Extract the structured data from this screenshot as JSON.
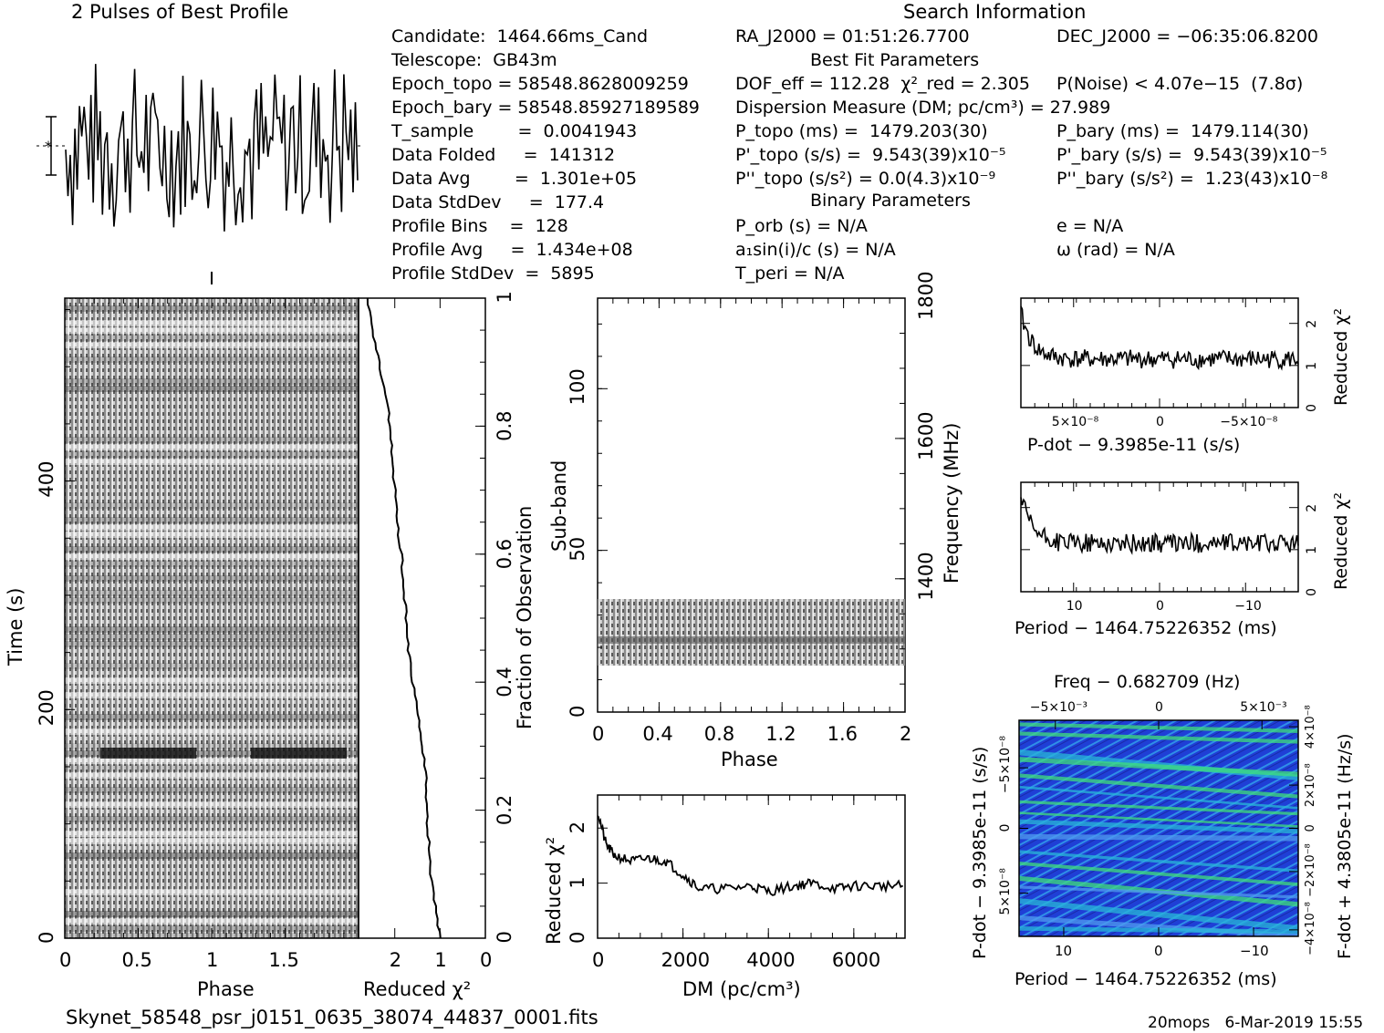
{
  "header": {
    "profile_title": "2 Pulses of Best Profile",
    "search_title": "Search Information",
    "best_fit_title": "Best Fit Parameters",
    "binary_title": "Binary Parameters"
  },
  "info_col1": [
    "Candidate:  1464.66ms_Cand",
    "Telescope:  GB43m",
    "Epoch_topo = 58548.8628009259",
    "Epoch_bary = 58548.85927189589",
    "T_sample        =  0.0041943",
    "Data Folded     =  141312",
    "Data Avg        =  1.301e+05",
    "Data StdDev     =  177.4",
    "Profile Bins    =  128",
    "Profile Avg     =  1.434e+08",
    "Profile StdDev  =  5895"
  ],
  "info_col2": [
    "RA_J2000 = 01:51:26.7700",
    "DOF_eff = 112.28  χ²_red = 2.305",
    "Dispersion Measure (DM; pc/cm³) = 27.989",
    "P_topo (ms) =  1479.203(30)",
    "P'_topo (s/s) =  9.543(39)x10⁻⁵",
    "P''_topo (s/s²) = 0.0(4.3)x10⁻⁹",
    "P_orb (s) = N/A",
    "a₁sin(i)/c (s) = N/A",
    "T_peri = N/A"
  ],
  "info_col3": [
    "DEC_J2000 = −06:35:06.8200",
    "P(Noise) < 4.07e−15  (7.8σ)",
    "P_bary (ms) =  1479.114(30)",
    "P'_bary (s/s) =  9.543(39)x10⁻⁵",
    "P''_bary (s/s²) =  1.23(43)x10⁻⁸",
    "e = N/A",
    "ω (rad) = N/A"
  ],
  "footer": {
    "filename": "Skynet_58548_psr_j0151_0635_38074_44837_0001.fits",
    "stamp": "20mops   6-Mar-2019 15:55"
  },
  "chart_data": [
    {
      "type": "line",
      "name": "pulse_profile",
      "title": "2 Pulses of Best Profile",
      "xlim": [
        0,
        2
      ],
      "note": "two identical pulses, noisy profile"
    },
    {
      "type": "heatmap",
      "name": "time_vs_phase",
      "xlabel": "Phase",
      "ylabel": "Time (s)",
      "xlim": [
        0,
        2
      ],
      "ylim": [
        0,
        560
      ],
      "x_ticks": [
        "0",
        "0.5",
        "1",
        "1.5"
      ],
      "y_ticks": [
        "0",
        "200",
        "400"
      ],
      "right_axis_label": "Fraction of Observation",
      "right_ticks": [
        "0",
        "0.2",
        "0.4",
        "0.6",
        "0.8",
        "1"
      ]
    },
    {
      "type": "line",
      "name": "reduced_chi2_vs_time",
      "xlabel": "Reduced χ²",
      "xlim": [
        2.8,
        0
      ],
      "x_ticks": [
        "2",
        "1",
        "0"
      ],
      "fraction": [
        0.0,
        0.05,
        0.1,
        0.15,
        0.2,
        0.25,
        0.3,
        0.35,
        0.4,
        0.45,
        0.5,
        0.55,
        0.6,
        0.65,
        0.7,
        0.75,
        0.8,
        0.85,
        0.9,
        0.95,
        1.0
      ],
      "chi2": [
        1.0,
        1.1,
        1.2,
        1.25,
        1.3,
        1.3,
        1.4,
        1.5,
        1.6,
        1.7,
        1.75,
        1.8,
        1.85,
        1.95,
        2.0,
        2.05,
        2.1,
        2.2,
        2.35,
        2.5,
        2.6
      ]
    },
    {
      "type": "heatmap",
      "name": "subband_vs_phase",
      "xlabel": "Phase",
      "ylabel": "Sub-band",
      "right_axis_label": "Frequency (MHz)",
      "xlim": [
        0,
        2
      ],
      "ylim": [
        0,
        128
      ],
      "x_ticks": [
        "0",
        "0.4",
        "0.8",
        "1.2",
        "1.6",
        "2"
      ],
      "y_ticks": [
        "0",
        "50",
        "100"
      ],
      "freq_ticks": [
        "1400",
        "1600",
        "1800"
      ],
      "filled_subbands": [
        14,
        35
      ]
    },
    {
      "type": "line",
      "name": "chi2_vs_dm",
      "xlabel": "DM (pc/cm³)",
      "ylabel": "Reduced χ²",
      "xlim": [
        0,
        7200
      ],
      "ylim": [
        0,
        2.6
      ],
      "x_ticks": [
        "0",
        "2000",
        "4000",
        "6000"
      ],
      "y_ticks": [
        "0",
        "1",
        "2"
      ],
      "x": [
        0,
        200,
        400,
        800,
        1200,
        1600,
        2000,
        2400,
        3000,
        3600,
        4000,
        4600,
        5000,
        5600,
        6000,
        6600,
        7200
      ],
      "y": [
        2.3,
        1.7,
        1.5,
        1.4,
        1.45,
        1.4,
        1.15,
        0.9,
        0.9,
        0.95,
        0.85,
        0.95,
        1.0,
        0.9,
        0.95,
        0.95,
        0.95
      ]
    },
    {
      "type": "line",
      "name": "chi2_vs_pdot",
      "xlabel": "P-dot − 9.3985e-11 (s/s)",
      "ylabel": "Reduced χ²",
      "x_ticks": [
        "5×10⁻⁸",
        "0",
        "−5×10⁻⁸"
      ],
      "y_ticks": [
        "0",
        "1",
        "2"
      ],
      "ylim": [
        0,
        2.6
      ]
    },
    {
      "type": "line",
      "name": "chi2_vs_period",
      "xlabel": "Period − 1464.75226352 (ms)",
      "ylabel": "Reduced χ²",
      "x_ticks": [
        "10",
        "0",
        "−10"
      ],
      "y_ticks": [
        "0",
        "1",
        "2"
      ],
      "ylim": [
        0,
        2.6
      ]
    },
    {
      "type": "heatmap",
      "name": "pdot_vs_period",
      "title": "Freq − 0.682709 (Hz)",
      "xlabel": "Period − 1464.75226352 (ms)",
      "ylabel": "P-dot − 9.3985e-11 (s/s)",
      "right_axis_label": "F-dot + 4.3805e-11 (Hz/s)",
      "x_ticks": [
        "10",
        "0",
        "−10"
      ],
      "top_ticks": [
        "−5×10⁻³",
        "0",
        "5×10⁻³"
      ],
      "y_ticks": [
        "−5×10⁻⁸",
        "0",
        "5×10⁻⁸"
      ],
      "right_ticks": [
        "4×10⁻⁸",
        "2×10⁻⁸",
        "0",
        "−2×10⁻⁸",
        "−4×10⁻⁸"
      ]
    }
  ]
}
